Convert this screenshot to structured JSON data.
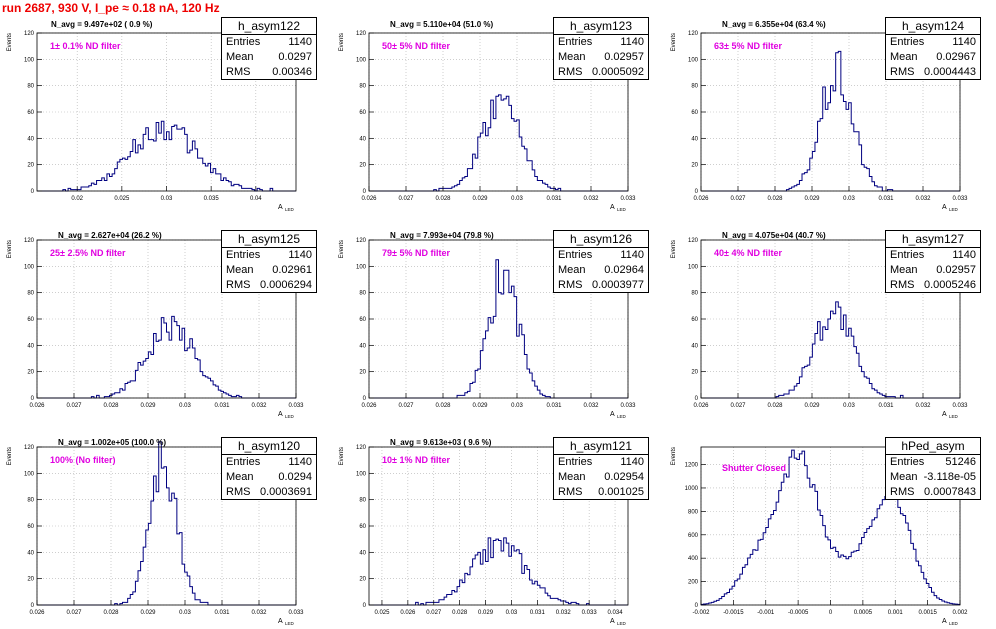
{
  "title": "run 2687,   930 V, I_pe ≈ 0.18 nA, 120 Hz",
  "colors": {
    "title": "#e00000",
    "histogram": "#000080",
    "annotation": "#e000e0",
    "grid": "#b0b0b0"
  },
  "stat_labels": {
    "entries": "Entries",
    "mean": "Mean",
    "rms": "RMS"
  },
  "y_axis_label": "Events",
  "x_axis_label": "A",
  "x_axis_subscript": "LED",
  "chart_data": [
    {
      "type": "histogram",
      "name": "h_asym122",
      "entries": "1140",
      "mean": "0.0297",
      "rms": "0.00346",
      "n_avg": "N_avg = 9.497e+02 ( 0.9 %)",
      "filter": "1± 0.1% ND filter",
      "xlim": [
        0.0155,
        0.0445
      ],
      "ylim": [
        0,
        120
      ],
      "xticks": [
        0.02,
        0.025,
        0.03,
        0.035,
        0.04
      ],
      "xtick_labels": [
        "0.02",
        "0.025",
        "0.03",
        "0.035",
        "0.04"
      ],
      "yticks": [
        0,
        20,
        40,
        60,
        80,
        100,
        120
      ],
      "gen": {
        "mean": 0.0297,
        "sigma": 0.0037,
        "peak": 48,
        "seed": 122
      }
    },
    {
      "type": "histogram",
      "name": "h_asym123",
      "entries": "1140",
      "mean": "0.02957",
      "rms": "0.0005092",
      "n_avg": "N_avg = 5.110e+04 (51.0 %)",
      "filter": "50± 5% ND filter",
      "xlim": [
        0.026,
        0.033
      ],
      "ylim": [
        0,
        120
      ],
      "xticks": [
        0.026,
        0.027,
        0.028,
        0.029,
        0.03,
        0.031,
        0.032,
        0.033
      ],
      "xtick_labels": [
        "0.026",
        "0.027",
        "0.028",
        "0.029",
        "0.03",
        "0.031",
        "0.032",
        "0.033"
      ],
      "yticks": [
        0,
        20,
        40,
        60,
        80,
        100,
        120
      ],
      "gen": {
        "mean": 0.02957,
        "sigma": 0.00052,
        "peak": 66,
        "seed": 123
      }
    },
    {
      "type": "histogram",
      "name": "h_asym124",
      "entries": "1140",
      "mean": "0.02967",
      "rms": "0.0004443",
      "n_avg": "N_avg = 6.355e+04 (63.4 %)",
      "filter": "63± 5% ND filter",
      "xlim": [
        0.026,
        0.033
      ],
      "ylim": [
        0,
        120
      ],
      "xticks": [
        0.026,
        0.027,
        0.028,
        0.029,
        0.03,
        0.031,
        0.032,
        0.033
      ],
      "xtick_labels": [
        "0.026",
        "0.027",
        "0.028",
        "0.029",
        "0.03",
        "0.031",
        "0.032",
        "0.033"
      ],
      "yticks": [
        0,
        20,
        40,
        60,
        80,
        100,
        120
      ],
      "gen": {
        "mean": 0.02967,
        "sigma": 0.00044,
        "peak": 88,
        "seed": 124
      }
    },
    {
      "type": "histogram",
      "name": "h_asym125",
      "entries": "1140",
      "mean": "0.02961",
      "rms": "0.0006294",
      "n_avg": "N_avg = 2.627e+04 (26.2 %)",
      "filter": "25± 2.5% ND filter",
      "xlim": [
        0.026,
        0.033
      ],
      "ylim": [
        0,
        120
      ],
      "xticks": [
        0.026,
        0.027,
        0.028,
        0.029,
        0.03,
        0.031,
        0.032,
        0.033
      ],
      "xtick_labels": [
        "0.026",
        "0.027",
        "0.028",
        "0.029",
        "0.03",
        "0.031",
        "0.032",
        "0.033"
      ],
      "yticks": [
        0,
        20,
        40,
        60,
        80,
        100,
        120
      ],
      "gen": {
        "mean": 0.02961,
        "sigma": 0.00063,
        "peak": 56,
        "seed": 125
      }
    },
    {
      "type": "histogram",
      "name": "h_asym126",
      "entries": "1140",
      "mean": "0.02964",
      "rms": "0.0003977",
      "n_avg": "N_avg = 7.993e+04 (79.8 %)",
      "filter": "79± 5% ND filter",
      "xlim": [
        0.026,
        0.033
      ],
      "ylim": [
        0,
        120
      ],
      "xticks": [
        0.026,
        0.027,
        0.028,
        0.029,
        0.03,
        0.031,
        0.032,
        0.033
      ],
      "xtick_labels": [
        "0.026",
        "0.027",
        "0.028",
        "0.029",
        "0.03",
        "0.031",
        "0.032",
        "0.033"
      ],
      "yticks": [
        0,
        20,
        40,
        60,
        80,
        100,
        120
      ],
      "gen": {
        "mean": 0.02964,
        "sigma": 0.0004,
        "peak": 95,
        "seed": 126
      }
    },
    {
      "type": "histogram",
      "name": "h_asym127",
      "entries": "1140",
      "mean": "0.02957",
      "rms": "0.0005246",
      "n_avg": "N_avg = 4.075e+04 (40.7 %)",
      "filter": "40± 4% ND filter",
      "xlim": [
        0.026,
        0.033
      ],
      "ylim": [
        0,
        120
      ],
      "xticks": [
        0.026,
        0.027,
        0.028,
        0.029,
        0.03,
        0.031,
        0.032,
        0.033
      ],
      "xtick_labels": [
        "0.026",
        "0.027",
        "0.028",
        "0.029",
        "0.03",
        "0.031",
        "0.032",
        "0.033"
      ],
      "yticks": [
        0,
        20,
        40,
        60,
        80,
        100,
        120
      ],
      "gen": {
        "mean": 0.02957,
        "sigma": 0.00052,
        "peak": 66,
        "seed": 127
      }
    },
    {
      "type": "histogram",
      "name": "h_asym120",
      "entries": "1140",
      "mean": "0.0294",
      "rms": "0.0003691",
      "n_avg": "N_avg = 1.002e+05 (100.0 %)",
      "filter": "100% (No filter)",
      "xlim": [
        0.026,
        0.033
      ],
      "ylim": [
        0,
        120
      ],
      "xticks": [
        0.026,
        0.027,
        0.028,
        0.029,
        0.03,
        0.031,
        0.032,
        0.033
      ],
      "xtick_labels": [
        "0.026",
        "0.027",
        "0.028",
        "0.029",
        "0.03",
        "0.031",
        "0.032",
        "0.033"
      ],
      "yticks": [
        0,
        20,
        40,
        60,
        80,
        100,
        120
      ],
      "gen": {
        "mean": 0.0294,
        "sigma": 0.00037,
        "peak": 108,
        "seed": 120
      }
    },
    {
      "type": "histogram",
      "name": "h_asym121",
      "entries": "1140",
      "mean": "0.02954",
      "rms": "0.001025",
      "n_avg": "N_avg = 9.613e+03 ( 9.6 %)",
      "filter": "10± 1% ND filter",
      "xlim": [
        0.0245,
        0.0345
      ],
      "ylim": [
        0,
        120
      ],
      "xticks": [
        0.025,
        0.026,
        0.027,
        0.028,
        0.029,
        0.03,
        0.031,
        0.032,
        0.033,
        0.034
      ],
      "xtick_labels": [
        "0.025",
        "0.026",
        "0.027",
        "0.028",
        "0.029",
        "0.03",
        "0.031",
        "0.032",
        "0.033",
        "0.034"
      ],
      "yticks": [
        0,
        20,
        40,
        60,
        80,
        100,
        120
      ],
      "gen": {
        "mean": 0.02954,
        "sigma": 0.00102,
        "peak": 46,
        "seed": 121
      }
    },
    {
      "type": "histogram",
      "name": "hPed_asym",
      "entries": "51246",
      "mean": "-3.118e-05",
      "rms": "0.0007843",
      "n_avg": "",
      "filter": "Shutter Closed",
      "xlim": [
        -0.002,
        0.002
      ],
      "ylim": [
        0,
        1350
      ],
      "xticks": [
        -0.002,
        -0.0015,
        -0.001,
        -0.0005,
        0,
        0.0005,
        0.001,
        0.0015,
        0.002
      ],
      "xtick_labels": [
        "-0.002",
        "-0.0015",
        "-0.001",
        "-0.0005",
        "0",
        "0.0005",
        "0.001",
        "0.0015",
        "0.002"
      ],
      "yticks": [
        0,
        200,
        400,
        600,
        800,
        1000,
        1200
      ],
      "gen": {
        "bimodal": true,
        "seed": 99
      }
    }
  ]
}
